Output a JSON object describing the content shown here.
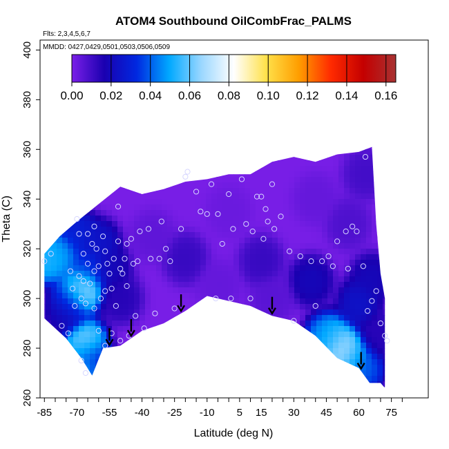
{
  "chart_data": {
    "type": "heatmap",
    "title": "ATOM4 Southbound OilCombFrac_PALMS",
    "flights_note": "Flts: 2,3,4,5,6,7",
    "dates_note": "MMDD: 0427,0429,0501,0503,0506,0509",
    "xlabel": "Latitude (deg N)",
    "ylabel": "Theta (C)",
    "xlim": [
      -87,
      92
    ],
    "ylim": [
      260,
      404
    ],
    "x_ticks": [
      -85,
      -70,
      -55,
      -40,
      -25,
      -10,
      5,
      15,
      30,
      45,
      60,
      75
    ],
    "y_ticks": [
      260,
      280,
      300,
      320,
      340,
      360,
      380,
      400
    ],
    "colorbar": {
      "range": [
        0,
        0.165
      ],
      "ticks": [
        "0.00",
        "0.02",
        "0.04",
        "0.06",
        "0.08",
        "0.10",
        "0.12",
        "0.14",
        "0.16"
      ],
      "tick_values": [
        0,
        0.02,
        0.04,
        0.06,
        0.08,
        0.1,
        0.12,
        0.14,
        0.16
      ],
      "colors": [
        "#7b1fe8",
        "#1a00b0",
        "#0028e0",
        "#00a8ff",
        "#9bd7ff",
        "#ffffff",
        "#ffe14a",
        "#ff9e00",
        "#ff2a00",
        "#c40000",
        "#a83232"
      ]
    },
    "arrows_latitude": [
      -55,
      -45,
      -22,
      20,
      61
    ],
    "floor_boundary": [
      [
        -85,
        292
      ],
      [
        -75,
        284
      ],
      [
        -68,
        276
      ],
      [
        -63,
        269
      ],
      [
        -58,
        280
      ],
      [
        -50,
        281
      ],
      [
        -40,
        287
      ],
      [
        -30,
        290
      ],
      [
        -20,
        295
      ],
      [
        -10,
        301
      ],
      [
        0,
        299
      ],
      [
        10,
        297
      ],
      [
        20,
        293
      ],
      [
        30,
        291
      ],
      [
        40,
        285
      ],
      [
        50,
        276
      ],
      [
        60,
        272
      ],
      [
        65,
        266
      ],
      [
        70,
        266
      ],
      [
        72,
        264
      ]
    ],
    "top_boundary": [
      [
        -85,
        318
      ],
      [
        -78,
        325
      ],
      [
        -70,
        331
      ],
      [
        -60,
        338
      ],
      [
        -50,
        345
      ],
      [
        -40,
        342
      ],
      [
        -30,
        344
      ],
      [
        -20,
        347
      ],
      [
        -10,
        348
      ],
      [
        0,
        350
      ],
      [
        10,
        350
      ],
      [
        20,
        355
      ],
      [
        30,
        357
      ],
      [
        40,
        355
      ],
      [
        50,
        358
      ],
      [
        60,
        359
      ],
      [
        66,
        361
      ],
      [
        68,
        330
      ],
      [
        70,
        310
      ],
      [
        72,
        300
      ]
    ],
    "field_points": [
      {
        "x": -84,
        "y": 316,
        "v": 0.055
      },
      {
        "x": -78,
        "y": 318,
        "v": 0.05
      },
      {
        "x": -72,
        "y": 300,
        "v": 0.045
      },
      {
        "x": -67,
        "y": 304,
        "v": 0.07
      },
      {
        "x": -66,
        "y": 282,
        "v": 0.065
      },
      {
        "x": -65,
        "y": 312,
        "v": 0.035
      },
      {
        "x": -70,
        "y": 326,
        "v": 0.03
      },
      {
        "x": -68,
        "y": 272,
        "v": 0.055
      },
      {
        "x": -64,
        "y": 276,
        "v": 0.03
      },
      {
        "x": -60,
        "y": 322,
        "v": 0.025
      },
      {
        "x": -75,
        "y": 295,
        "v": 0.02
      },
      {
        "x": -55,
        "y": 312,
        "v": 0.02
      },
      {
        "x": -50,
        "y": 300,
        "v": 0.015
      },
      {
        "x": 48,
        "y": 283,
        "v": 0.06
      },
      {
        "x": 52,
        "y": 279,
        "v": 0.075
      },
      {
        "x": 56,
        "y": 276,
        "v": 0.055
      },
      {
        "x": 45,
        "y": 284,
        "v": 0.045
      },
      {
        "x": 62,
        "y": 272,
        "v": 0.04
      },
      {
        "x": 60,
        "y": 298,
        "v": 0.025
      },
      {
        "x": 38,
        "y": 307,
        "v": 0.02
      },
      {
        "x": 66,
        "y": 308,
        "v": 0.02
      },
      {
        "x": -20,
        "y": 316,
        "v": 0.012
      },
      {
        "x": 15,
        "y": 315,
        "v": 0.012
      },
      {
        "x": -35,
        "y": 325,
        "v": 0.005
      },
      {
        "x": 0,
        "y": 335,
        "v": 0.003
      },
      {
        "x": 40,
        "y": 340,
        "v": 0.004
      },
      {
        "x": 20,
        "y": 300,
        "v": 0.006
      },
      {
        "x": -5,
        "y": 305,
        "v": 0.004
      },
      {
        "x": 55,
        "y": 330,
        "v": 0.008
      },
      {
        "x": 63,
        "y": 350,
        "v": 0.01
      },
      {
        "x": 70,
        "y": 285,
        "v": 0.015
      }
    ],
    "sample_points": [
      [
        -85,
        315
      ],
      [
        -82,
        318
      ],
      [
        -77,
        289
      ],
      [
        -74,
        286
      ],
      [
        -73,
        311
      ],
      [
        -72,
        304
      ],
      [
        -71,
        297
      ],
      [
        -70,
        332
      ],
      [
        -69,
        326
      ],
      [
        -69,
        309
      ],
      [
        -68,
        300
      ],
      [
        -68,
        275
      ],
      [
        -67,
        318
      ],
      [
        -67,
        307
      ],
      [
        -66,
        298
      ],
      [
        -66,
        270
      ],
      [
        -65,
        326
      ],
      [
        -65,
        314
      ],
      [
        -64,
        306
      ],
      [
        -63,
        322
      ],
      [
        -62,
        329
      ],
      [
        -62,
        311
      ],
      [
        -62,
        296
      ],
      [
        -61,
        320
      ],
      [
        -60,
        313
      ],
      [
        -60,
        287
      ],
      [
        -59,
        300
      ],
      [
        -58,
        325
      ],
      [
        -57,
        319
      ],
      [
        -57,
        303
      ],
      [
        -57,
        281
      ],
      [
        -56,
        314
      ],
      [
        -55,
        310
      ],
      [
        -54,
        304
      ],
      [
        -54,
        286
      ],
      [
        -53,
        316
      ],
      [
        -52,
        297
      ],
      [
        -51,
        337
      ],
      [
        -51,
        323
      ],
      [
        -50,
        312
      ],
      [
        -50,
        283
      ],
      [
        -49,
        310
      ],
      [
        -48,
        316
      ],
      [
        -47,
        305
      ],
      [
        -46,
        285
      ],
      [
        -45,
        324
      ],
      [
        -44,
        314
      ],
      [
        -43,
        293
      ],
      [
        -42,
        315
      ],
      [
        -41,
        327
      ],
      [
        -39,
        288
      ],
      [
        -37,
        328
      ],
      [
        -36,
        316
      ],
      [
        -34,
        294
      ],
      [
        -32,
        316
      ],
      [
        -31,
        331
      ],
      [
        -29,
        320
      ],
      [
        -27,
        315
      ],
      [
        -25,
        296
      ],
      [
        -22,
        328
      ],
      [
        -20,
        349
      ],
      [
        -19,
        351
      ],
      [
        -15,
        343
      ],
      [
        -13,
        335
      ],
      [
        -10,
        334
      ],
      [
        -8,
        346
      ],
      [
        -6,
        300
      ],
      [
        -5,
        334
      ],
      [
        -3,
        322
      ],
      [
        0,
        342
      ],
      [
        1,
        300
      ],
      [
        2,
        328
      ],
      [
        6,
        348
      ],
      [
        8,
        330
      ],
      [
        10,
        300
      ],
      [
        11,
        327
      ],
      [
        13,
        341
      ],
      [
        15,
        341
      ],
      [
        16,
        324
      ],
      [
        17,
        336
      ],
      [
        18,
        331
      ],
      [
        20,
        346
      ],
      [
        21,
        328
      ],
      [
        24,
        333
      ],
      [
        28,
        319
      ],
      [
        30,
        291
      ],
      [
        33,
        317
      ],
      [
        38,
        315
      ],
      [
        40,
        297
      ],
      [
        43,
        315
      ],
      [
        46,
        317
      ],
      [
        48,
        313
      ],
      [
        50,
        323
      ],
      [
        54,
        327
      ],
      [
        55,
        312
      ],
      [
        57,
        329
      ],
      [
        59,
        327
      ],
      [
        62,
        313
      ],
      [
        64,
        295
      ],
      [
        66,
        299
      ],
      [
        68,
        303
      ],
      [
        70,
        290
      ],
      [
        72,
        285
      ],
      [
        73,
        283
      ],
      [
        63,
        357
      ],
      [
        -47,
        322
      ]
    ]
  }
}
